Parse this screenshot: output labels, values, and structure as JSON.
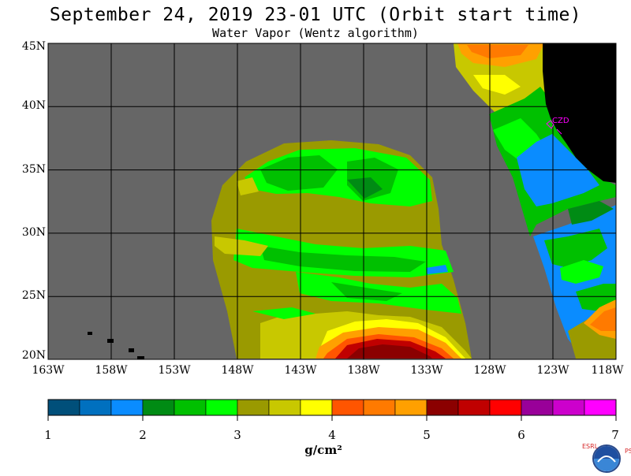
{
  "title": "September 24, 2019  23-01 UTC  (Orbit start time)",
  "subtitle": "Water Vapor (Wentz algorithm)",
  "y_labels": [
    "45N",
    "40N",
    "35N",
    "30N",
    "25N",
    "20N"
  ],
  "x_labels": [
    "163W",
    "158W",
    "153W",
    "148W",
    "143W",
    "138W",
    "133W",
    "128W",
    "123W",
    "118W"
  ],
  "station_label": "CZD",
  "colorbar": {
    "colors": [
      "#004f7a",
      "#0070bf",
      "#0a8cff",
      "#008b14",
      "#00c000",
      "#00ff00",
      "#9a9a00",
      "#c8c800",
      "#ffff00",
      "#ff5500",
      "#ff7a00",
      "#ffa000",
      "#8b0000",
      "#c00000",
      "#ff0000",
      "#990099",
      "#cc00cc",
      "#ff00ff"
    ],
    "tick_labels": [
      "1",
      "2",
      "3",
      "4",
      "5",
      "6",
      "7"
    ],
    "units": "g/cm²"
  },
  "logo": {
    "left_letters": "ESRL",
    "right_letters": "PSD",
    "center": "NOAA"
  },
  "colors": {
    "no_data": "#666666",
    "land": "#000000",
    "station": "#ff00ff"
  }
}
